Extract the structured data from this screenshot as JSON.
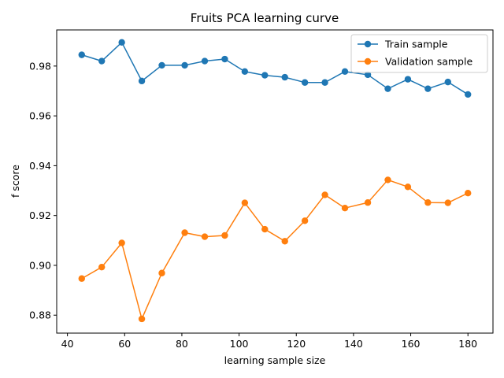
{
  "chart_data": {
    "type": "line",
    "title": "Fruits PCA learning curve",
    "xlabel": "learning sample size",
    "ylabel": "f score",
    "xlim": [
      36.25,
      188.75
    ],
    "ylim": [
      0.8728,
      0.9945
    ],
    "xticks": [
      40,
      60,
      80,
      100,
      120,
      140,
      160,
      180
    ],
    "yticks": [
      0.88,
      0.9,
      0.92,
      0.94,
      0.96,
      0.98
    ],
    "x": [
      45,
      52,
      59,
      66,
      73,
      81,
      88,
      95,
      102,
      109,
      116,
      123,
      130,
      137,
      145,
      152,
      159,
      166,
      173,
      180
    ],
    "series": [
      {
        "name": "Train sample",
        "color": "#1f77b4",
        "values": [
          0.9845,
          0.982,
          0.9895,
          0.974,
          0.9803,
          0.9803,
          0.982,
          0.9828,
          0.9778,
          0.9763,
          0.9755,
          0.9734,
          0.9734,
          0.9778,
          0.9765,
          0.9709,
          0.9747,
          0.9709,
          0.9736,
          0.9686
        ]
      },
      {
        "name": "Validation sample",
        "color": "#ff7f0e",
        "values": [
          0.8947,
          0.8993,
          0.909,
          0.8785,
          0.8969,
          0.9131,
          0.9115,
          0.912,
          0.9251,
          0.9145,
          0.9097,
          0.9179,
          0.9283,
          0.923,
          0.9252,
          0.9343,
          0.9315,
          0.9252,
          0.9251,
          0.929
        ]
      }
    ],
    "grid": false,
    "legend_position": "top-right"
  }
}
